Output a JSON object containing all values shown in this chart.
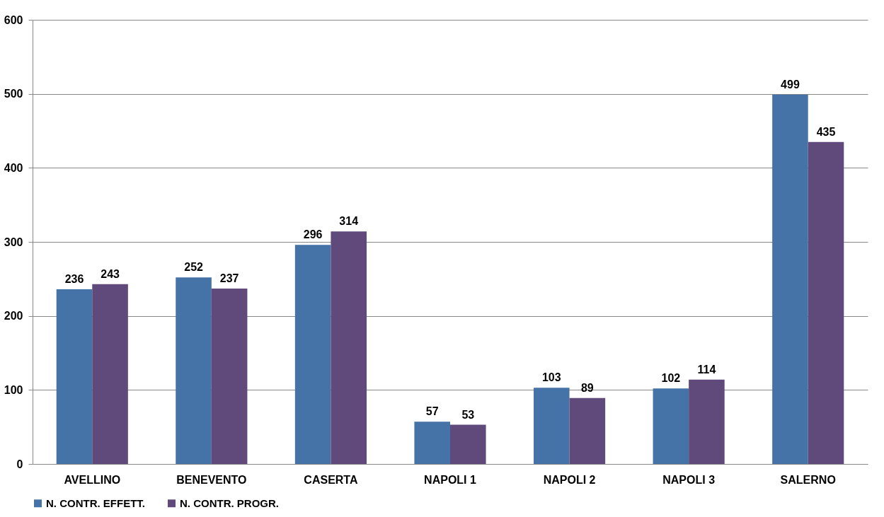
{
  "chart_data": {
    "type": "bar",
    "categories": [
      "AVELLINO",
      "BENEVENTO",
      "CASERTA",
      "NAPOLI 1",
      "NAPOLI 2",
      "NAPOLI 3",
      "SALERNO"
    ],
    "series": [
      {
        "name": "N. CONTR. EFFETT.",
        "color": "#4572a7",
        "values": [
          236,
          252,
          296,
          57,
          103,
          102,
          499
        ]
      },
      {
        "name": "N. CONTR. PROGR.",
        "color": "#604a7b",
        "values": [
          243,
          237,
          314,
          53,
          89,
          114,
          435
        ]
      }
    ],
    "ylim": [
      0,
      600
    ],
    "yticks": [
      0,
      100,
      200,
      300,
      400,
      500,
      600
    ],
    "grid": "y",
    "legend": "bottom",
    "data_labels": true
  }
}
